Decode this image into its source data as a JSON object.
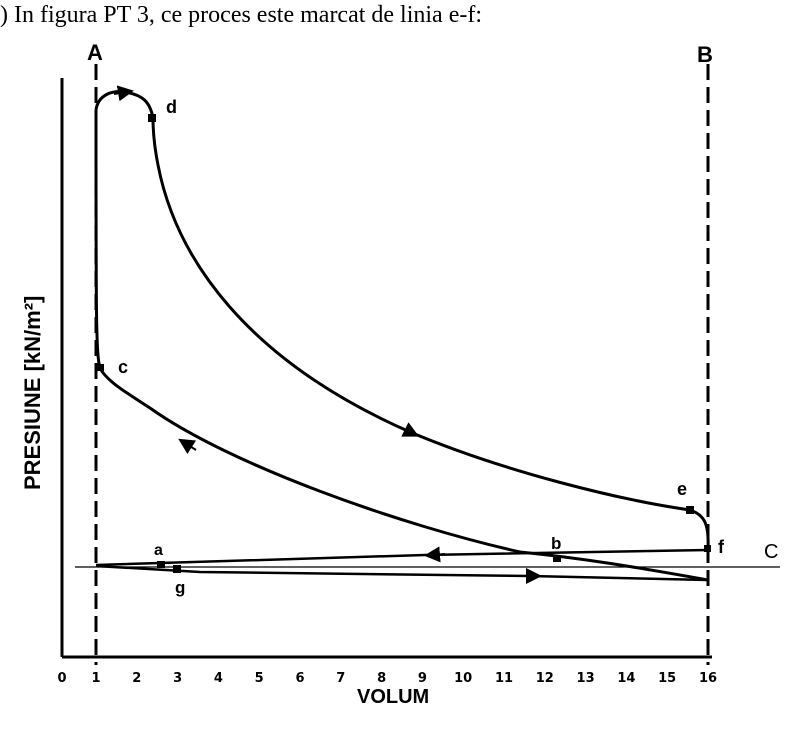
{
  "question": ") In figura PT 3, ce proces este marcat de linia e-f:",
  "diagram": {
    "y_axis_label": "PRESIUNE [kN/m²]",
    "x_axis_label": "VOLUM",
    "x_ticks": [
      "0",
      "1",
      "2",
      "3",
      "4",
      "5",
      "6",
      "7",
      "8",
      "9",
      "10",
      "11",
      "12",
      "13",
      "14",
      "15",
      "16"
    ],
    "line_labels": {
      "A": "A",
      "B": "B",
      "C": "C"
    },
    "point_labels": {
      "a": "a",
      "b": "b",
      "c": "c",
      "d": "d",
      "e": "e",
      "f": "f",
      "g": "g"
    }
  }
}
